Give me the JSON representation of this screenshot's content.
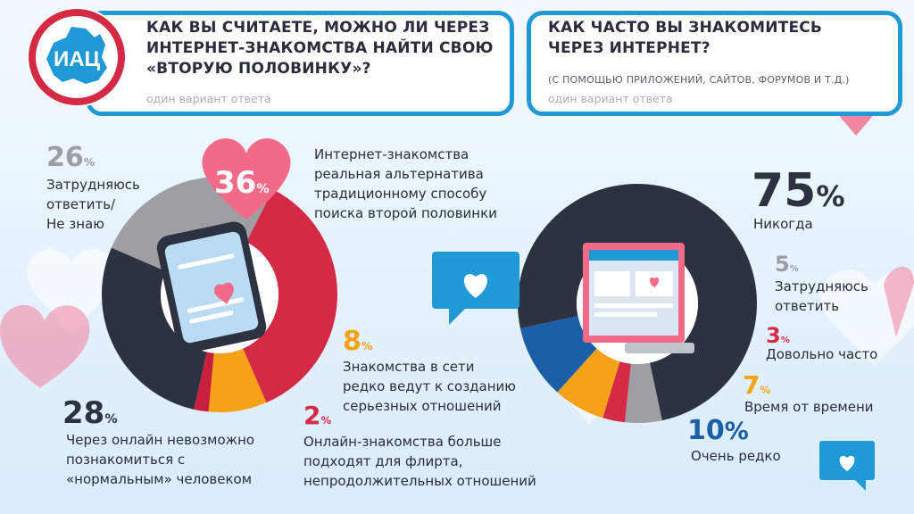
{
  "logo": {
    "text": "ИАЦ"
  },
  "questions": {
    "q1": {
      "title_lines": [
        "КАК ВЫ СЧИТАЕТЕ, МОЖНО ЛИ ЧЕРЕЗ",
        "ИНТЕРНЕТ-ЗНАКОМСТВА НАЙТИ СВОЮ",
        "«ВТОРУЮ ПОЛОВИНКУ»?"
      ],
      "hint": "один вариант ответа"
    },
    "q2": {
      "title_lines": [
        "КАК ЧАСТО ВЫ ЗНАКОМИТЕСЬ",
        "ЧЕРЕЗ ИНТЕРНЕТ?"
      ],
      "subtitle": "(С ПОМОЩЬЮ ПРИЛОЖЕНИЙ, САЙТОВ, ФОРУМОВ И Т.Д.)",
      "hint": "один вариант ответа"
    }
  },
  "labels": {
    "c1": {
      "p36": {
        "num": "36",
        "sym": "%",
        "lines": [
          "Интернет-знакомства",
          "реальная альтернатива",
          "традиционному способу",
          "поиска второй половинки"
        ]
      },
      "p8": {
        "num": "8",
        "sym": "%",
        "lines": [
          "Знакомства в сети",
          "редко ведут к созданию",
          "серьезных отношений"
        ]
      },
      "p2": {
        "num": "2",
        "sym": "%",
        "lines": [
          "Онлайн-знакомства больше",
          "подходят для флирта,",
          "непродолжительных отношений"
        ]
      },
      "p28": {
        "num": "28",
        "sym": "%",
        "lines": [
          "Через онлайн невозможно",
          "познакомиться с",
          "«нормальным» человеком"
        ]
      },
      "p26": {
        "num": "26",
        "sym": "%",
        "lines": [
          "Затрудняюсь",
          "ответить/",
          "Не знаю"
        ]
      }
    },
    "c2": {
      "p75": {
        "num": "75",
        "sym": "%",
        "lines": [
          "Никогда"
        ]
      },
      "p5": {
        "num": "5",
        "sym": "%",
        "lines": [
          "Затрудняюсь",
          "ответить"
        ]
      },
      "p3": {
        "num": "3",
        "sym": "%",
        "lines": [
          "Довольно часто"
        ]
      },
      "p7": {
        "num": "7",
        "sym": "%",
        "lines": [
          "Время от времени"
        ]
      },
      "p10": {
        "num": "10",
        "sym": "%",
        "lines": [
          "Очень редко"
        ]
      }
    }
  },
  "colors": {
    "blue": "#1f9ad6",
    "pink": "#e84c6c",
    "red": "#d42a46",
    "dark": "#2d3241",
    "gray": "#9d9fa5",
    "orange": "#f5a218",
    "navy": "#1b5fa8",
    "crimson": "#c81f3c"
  },
  "chart_data": [
    {
      "type": "pie",
      "title": "Как вы считаете, можно ли через интернет-знакомства найти свою «вторую половинку»?",
      "categories": [
        "Интернет-знакомства реальная альтернатива традиционному способу поиска второй половинки",
        "Знакомства в сети редко ведут к созданию серьезных отношений",
        "Онлайн-знакомства больше подходят для флирта, непродолжительных отношений",
        "Через онлайн невозможно познакомиться с «нормальным» человеком",
        "Затрудняюсь ответить/ Не знаю"
      ],
      "values": [
        36,
        8,
        2,
        28,
        26
      ],
      "colors": [
        "#d42a46",
        "#f5a218",
        "#c81f3c",
        "#2d3241",
        "#9d9fa5"
      ],
      "start_angle": -63
    },
    {
      "type": "pie",
      "title": "Как часто вы знакомитесь через интернет?",
      "categories": [
        "Затрудняюсь ответить",
        "Довольно часто",
        "Время от времени",
        "Очень редко",
        "Никогда"
      ],
      "values": [
        5,
        3,
        7,
        10,
        75
      ],
      "colors": [
        "#9d9fa5",
        "#d42a46",
        "#f5a218",
        "#1b5fa8",
        "#2d3241"
      ],
      "start_angle": 78
    }
  ]
}
